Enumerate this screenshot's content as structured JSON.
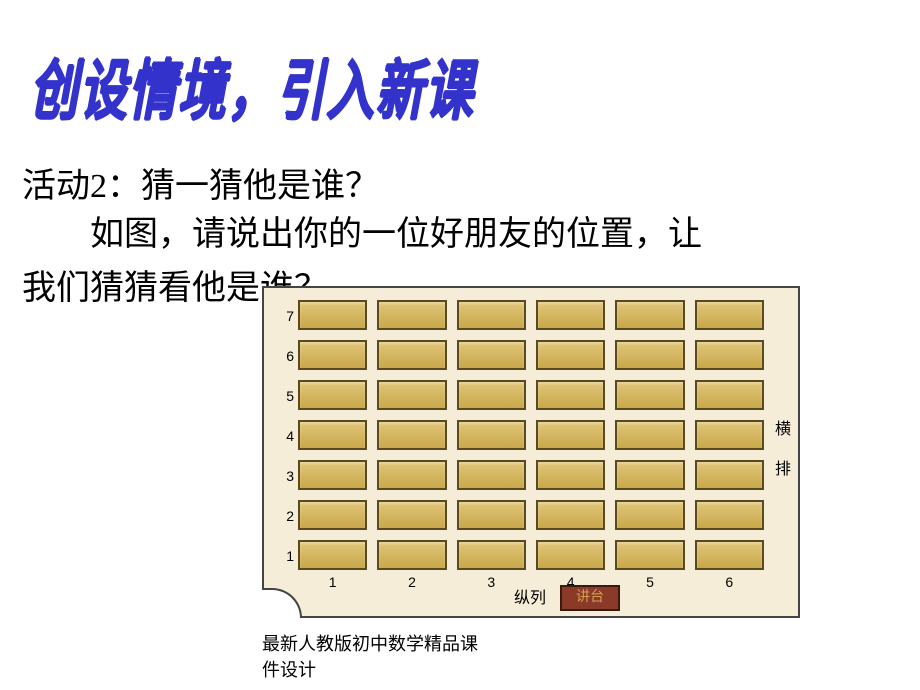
{
  "title": "创设情境，引入新课",
  "activity": "活动2：猜一猜他是谁？",
  "bodyLine1": "　　如图，请说出你的一位好朋友的位置，让",
  "bodyLine2": "我们猜猜看他是谁？",
  "rowLabels": [
    "7",
    "6",
    "5",
    "4",
    "3",
    "2",
    "1"
  ],
  "colLabels": [
    "1",
    "2",
    "3",
    "4",
    "5",
    "6"
  ],
  "sideLabel1": "横",
  "sideLabel2": "排",
  "bottomLabel": "纵列",
  "podium": "讲台",
  "footer1": "最新人教版初中数学精品课",
  "footer2": "件设计",
  "diagramBg": "#f5edd8",
  "seatColor1": "#e0c67a",
  "seatColor2": "#c9a84a",
  "seatBorder": "#5a4a20",
  "rowTops": [
    4,
    44,
    84,
    124,
    164,
    204,
    244
  ],
  "colLabelTop": 278,
  "sideLabelTop1": 124,
  "sideLabelTop2": 164,
  "podiumLeft": 296,
  "podiumBottom": 5,
  "bottomLabelLeft": 250,
  "bottomLabelBottom": 8
}
